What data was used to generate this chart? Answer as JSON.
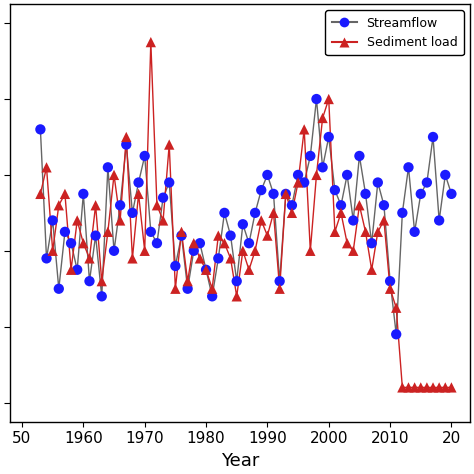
{
  "years": [
    1953,
    1954,
    1955,
    1956,
    1957,
    1958,
    1959,
    1960,
    1961,
    1962,
    1963,
    1964,
    1965,
    1966,
    1967,
    1968,
    1969,
    1970,
    1971,
    1972,
    1973,
    1974,
    1975,
    1976,
    1977,
    1978,
    1979,
    1980,
    1981,
    1982,
    1983,
    1984,
    1985,
    1986,
    1987,
    1988,
    1989,
    1990,
    1991,
    1992,
    1993,
    1994,
    1995,
    1996,
    1997,
    1998,
    1999,
    2000,
    2001,
    2002,
    2003,
    2004,
    2005,
    2006,
    2007,
    2008,
    2009,
    2010,
    2011,
    2012,
    2013,
    2014,
    2015,
    2016,
    2017,
    2018,
    2019,
    2020
  ],
  "streamflow": [
    0.72,
    0.38,
    0.48,
    0.3,
    0.45,
    0.42,
    0.35,
    0.55,
    0.32,
    0.44,
    0.28,
    0.62,
    0.4,
    0.52,
    0.68,
    0.5,
    0.58,
    0.65,
    0.45,
    0.42,
    0.54,
    0.58,
    0.36,
    0.44,
    0.3,
    0.4,
    0.42,
    0.35,
    0.28,
    0.38,
    0.5,
    0.44,
    0.32,
    0.47,
    0.42,
    0.5,
    0.56,
    0.6,
    0.55,
    0.32,
    0.55,
    0.52,
    0.6,
    0.58,
    0.65,
    0.8,
    0.62,
    0.7,
    0.56,
    0.52,
    0.6,
    0.48,
    0.65,
    0.55,
    0.42,
    0.58,
    0.52,
    0.32,
    0.18,
    0.5,
    0.62,
    0.45,
    0.55,
    0.58,
    0.7,
    0.48,
    0.6,
    0.55
  ],
  "sediment": [
    0.55,
    0.62,
    0.4,
    0.52,
    0.55,
    0.35,
    0.48,
    0.42,
    0.38,
    0.52,
    0.32,
    0.45,
    0.6,
    0.48,
    0.7,
    0.38,
    0.55,
    0.4,
    0.95,
    0.52,
    0.48,
    0.68,
    0.3,
    0.45,
    0.32,
    0.42,
    0.38,
    0.35,
    0.3,
    0.44,
    0.42,
    0.38,
    0.28,
    0.4,
    0.35,
    0.4,
    0.48,
    0.44,
    0.5,
    0.3,
    0.55,
    0.5,
    0.58,
    0.72,
    0.4,
    0.6,
    0.75,
    0.8,
    0.45,
    0.5,
    0.42,
    0.4,
    0.52,
    0.45,
    0.35,
    0.45,
    0.48,
    0.3,
    0.25,
    0.04,
    0.04,
    0.04,
    0.04,
    0.04,
    0.04,
    0.04,
    0.04,
    0.04
  ],
  "streamflow_color": "#1a1aff",
  "sediment_color": "#cc2222",
  "streamflow_line_color": "#666666",
  "sediment_line_color": "#cc2222",
  "xlabel": "Year",
  "legend_streamflow": "Streamflow",
  "legend_sediment": "Sediment load",
  "xlim": [
    1948,
    2023
  ],
  "ylim": [
    -0.05,
    1.05
  ],
  "xticks": [
    1950,
    1960,
    1970,
    1980,
    1990,
    2000,
    2010,
    2020
  ],
  "xtick_labels": [
    "50",
    "1960",
    "1970",
    "1980",
    "1990",
    "2000",
    "2010",
    "20"
  ],
  "figsize": [
    4.74,
    4.74
  ],
  "dpi": 100
}
